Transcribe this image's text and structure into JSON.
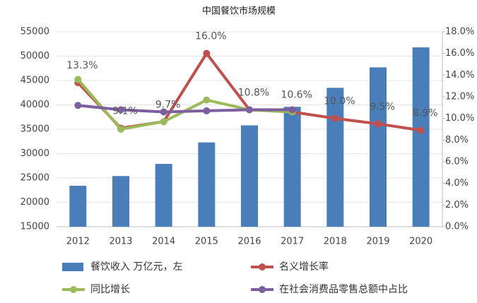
{
  "chart_data": {
    "type": "bar",
    "title": "中国餐饮市场规模",
    "categories": [
      "2012",
      "2013",
      "2014",
      "2015",
      "2016",
      "2017",
      "2018",
      "2019",
      "2020"
    ],
    "series": [
      {
        "name": "餐饮收入  万亿元，左",
        "type": "bar",
        "color": "#4a7ebb",
        "axis": "y",
        "values": [
          23400,
          25400,
          27900,
          32300,
          35800,
          39600,
          43500,
          47700,
          51800
        ]
      },
      {
        "name": "名义增长率",
        "type": "line",
        "color": "#c0504d",
        "axis": "y2",
        "values": [
          13.3,
          9.1,
          9.7,
          16.0,
          10.8,
          10.6,
          10.0,
          9.5,
          8.9
        ],
        "value_labels": [
          "13.3%",
          "9.1%",
          "9.7%",
          "16.0%",
          "10.8%",
          "10.6%",
          "10.0%",
          "9.5%",
          "8.9%"
        ]
      },
      {
        "name": "同比增长",
        "type": "line",
        "color": "#9bbb59",
        "axis": "y2",
        "values": [
          13.6,
          9.0,
          9.7,
          11.7,
          10.8,
          10.6,
          null,
          null,
          null
        ]
      },
      {
        "name": "在社会消费品零售总额中占比",
        "type": "line",
        "color": "#7d5fa0",
        "axis": "y2",
        "values": [
          11.2,
          10.8,
          10.6,
          10.7,
          10.8,
          10.8,
          null,
          null,
          null
        ]
      }
    ],
    "ylim": [
      15000,
      55000
    ],
    "yticks": [
      15000,
      20000,
      25000,
      30000,
      35000,
      40000,
      45000,
      50000,
      55000
    ],
    "y2lim": [
      0,
      18
    ],
    "y2ticks": [
      {
        "value": 0,
        "label": "0.0%"
      },
      {
        "value": 2,
        "label": "2.0%"
      },
      {
        "value": 4,
        "label": "4.0%"
      },
      {
        "value": 6,
        "label": "6.0%"
      },
      {
        "value": 8,
        "label": "8.0%"
      },
      {
        "value": 10,
        "label": "10.0%"
      },
      {
        "value": 12,
        "label": "12.0%"
      },
      {
        "value": 14,
        "label": "14.0%"
      },
      {
        "value": 16,
        "label": "16.0%"
      },
      {
        "value": 18,
        "label": "18.0%"
      }
    ],
    "grid": true,
    "legend": "bottom"
  }
}
